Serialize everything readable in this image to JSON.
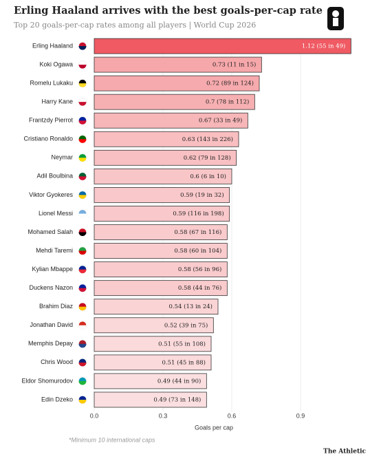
{
  "chart_data": {
    "type": "bar",
    "orientation": "horizontal",
    "title": "Erling Haaland arrives with the best goals-per-cap rate",
    "subtitle": "Top 20 goals-per-cap rates among all players | World Cup 2026",
    "x_label": "Goals per cap",
    "note": "*Minimum 10 international caps",
    "source": "The Athletic",
    "categories": [
      "Erling Haaland",
      "Koki Ogawa",
      "Romelu Lukaku",
      "Harry Kane",
      "Frantzdy Pierrot",
      "Cristiano Ronaldo",
      "Neymar",
      "Adil Boulbina",
      "Viktor Gyokeres",
      "Lionel Messi",
      "Mohamed Salah",
      "Mehdi Taremi",
      "Kylian Mbappe",
      "Duckens Nazon",
      "Brahim Diaz",
      "Jonathan David",
      "Memphis Depay",
      "Chris Wood",
      "Eldor Shomurodov",
      "Edin Dzeko"
    ],
    "values": [
      1.12,
      0.73,
      0.72,
      0.7,
      0.67,
      0.63,
      0.62,
      0.6,
      0.59,
      0.59,
      0.58,
      0.58,
      0.58,
      0.58,
      0.54,
      0.52,
      0.51,
      0.51,
      0.49,
      0.49
    ],
    "value_labels": [
      "1.12 (55 in 49)",
      "0.73 (11 in 15)",
      "0.72 (89 in 124)",
      "0.7 (78 in 112)",
      "0.67 (33 in 49)",
      "0.63 (143 in 226)",
      "0.62 (79 in 128)",
      "0.6 (6 in 10)",
      "0.59 (19 in 32)",
      "0.59 (116 in 198)",
      "0.58 (67 in 116)",
      "0.58 (60 in 104)",
      "0.58 (56 in 96)",
      "0.58 (44 in 76)",
      "0.54 (13 in 24)",
      "0.52 (39 in 75)",
      "0.51 (55 in 108)",
      "0.51 (45 in 88)",
      "0.49 (44 in 90)",
      "0.49 (73 in 148)"
    ],
    "colors": [
      "#ef5a63",
      "#f6a7aa",
      "#f6aaad",
      "#f7b0b2",
      "#f7b6b8",
      "#f8bec0",
      "#f8c0c2",
      "#f9c6c8",
      "#f9c8ca",
      "#f9c8ca",
      "#f9cbcd",
      "#f9cbcd",
      "#f9cbcd",
      "#f9cbcd",
      "#fad4d5",
      "#fad7d8",
      "#fbdadb",
      "#fbdadb",
      "#fbdfe0",
      "#fbdfe0"
    ],
    "xlim": [
      0,
      1.2
    ],
    "xticks": [
      {
        "value": 0,
        "label": "0.0"
      },
      0.3,
      0.6,
      0.9
    ],
    "grid": true
  }
}
